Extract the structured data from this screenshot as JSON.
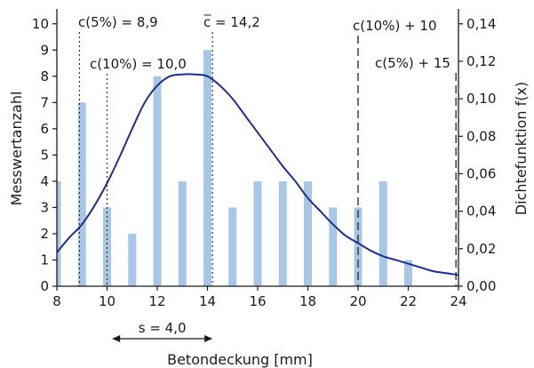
{
  "chart_data": {
    "type": "bar",
    "xlabel": "Betondeckung [mm]",
    "ylabel": "Messwertanzahl",
    "y2label": "Dichtefunktion f(x)",
    "xlim": [
      8,
      24
    ],
    "ylim": [
      0,
      10.5
    ],
    "y2lim": [
      0,
      0.147
    ],
    "x_ticks": [
      "8",
      "10",
      "12",
      "14",
      "16",
      "18",
      "20",
      "22",
      "24"
    ],
    "y_ticks": [
      "0",
      "1",
      "2",
      "3",
      "4",
      "5",
      "6",
      "7",
      "8",
      "9",
      "10"
    ],
    "y2_ticks": [
      "0,00",
      "0,02",
      "0,04",
      "0,06",
      "0,08",
      "0,10",
      "0,12",
      "0,14"
    ],
    "series": [
      {
        "kind": "bar",
        "color": "#a8c6e6",
        "x": [
          8,
          9,
          10,
          11,
          12,
          13,
          14,
          15,
          16,
          17,
          18,
          19,
          20,
          21,
          22
        ],
        "values": [
          4,
          7,
          3,
          2,
          8,
          4,
          9,
          3,
          4,
          4,
          4,
          3,
          3,
          4,
          1
        ]
      },
      {
        "kind": "line",
        "axis": "right",
        "color": "#1f2f85",
        "x": [
          8,
          8.5,
          9,
          9.5,
          10,
          10.5,
          11,
          11.5,
          12,
          12.5,
          13,
          13.5,
          14,
          14.5,
          15,
          15.5,
          16,
          16.5,
          17,
          17.5,
          18,
          18.5,
          19,
          19.5,
          20,
          20.5,
          21,
          21.5,
          22,
          22.5,
          23,
          23.5,
          24
        ],
        "values": [
          0.018,
          0.026,
          0.033,
          0.043,
          0.055,
          0.069,
          0.084,
          0.098,
          0.107,
          0.112,
          0.113,
          0.113,
          0.112,
          0.107,
          0.1,
          0.091,
          0.082,
          0.073,
          0.064,
          0.056,
          0.047,
          0.04,
          0.033,
          0.027,
          0.023,
          0.019,
          0.016,
          0.014,
          0.012,
          0.01,
          0.008,
          0.007,
          0.006
        ]
      }
    ],
    "markers": [
      {
        "id": "c5",
        "x": 8.9,
        "style": "dotted",
        "label": "c(5%) = 8,9"
      },
      {
        "id": "c10",
        "x": 10.0,
        "style": "dotted",
        "label": "c(10%) = 10,0"
      },
      {
        "id": "cmean",
        "x": 14.2,
        "style": "dotted",
        "label_prefix": "c",
        "label_suffix": " = 14,2"
      },
      {
        "id": "c10p10",
        "x": 20.0,
        "style": "dashed",
        "label": "c(10%) + 10"
      },
      {
        "id": "c5p15",
        "x": 23.9,
        "style": "dashed",
        "label": "c(5%) + 15"
      }
    ],
    "std_dev_arrow": {
      "from": 10.2,
      "to": 14.2,
      "label": "s = 4,0"
    }
  }
}
